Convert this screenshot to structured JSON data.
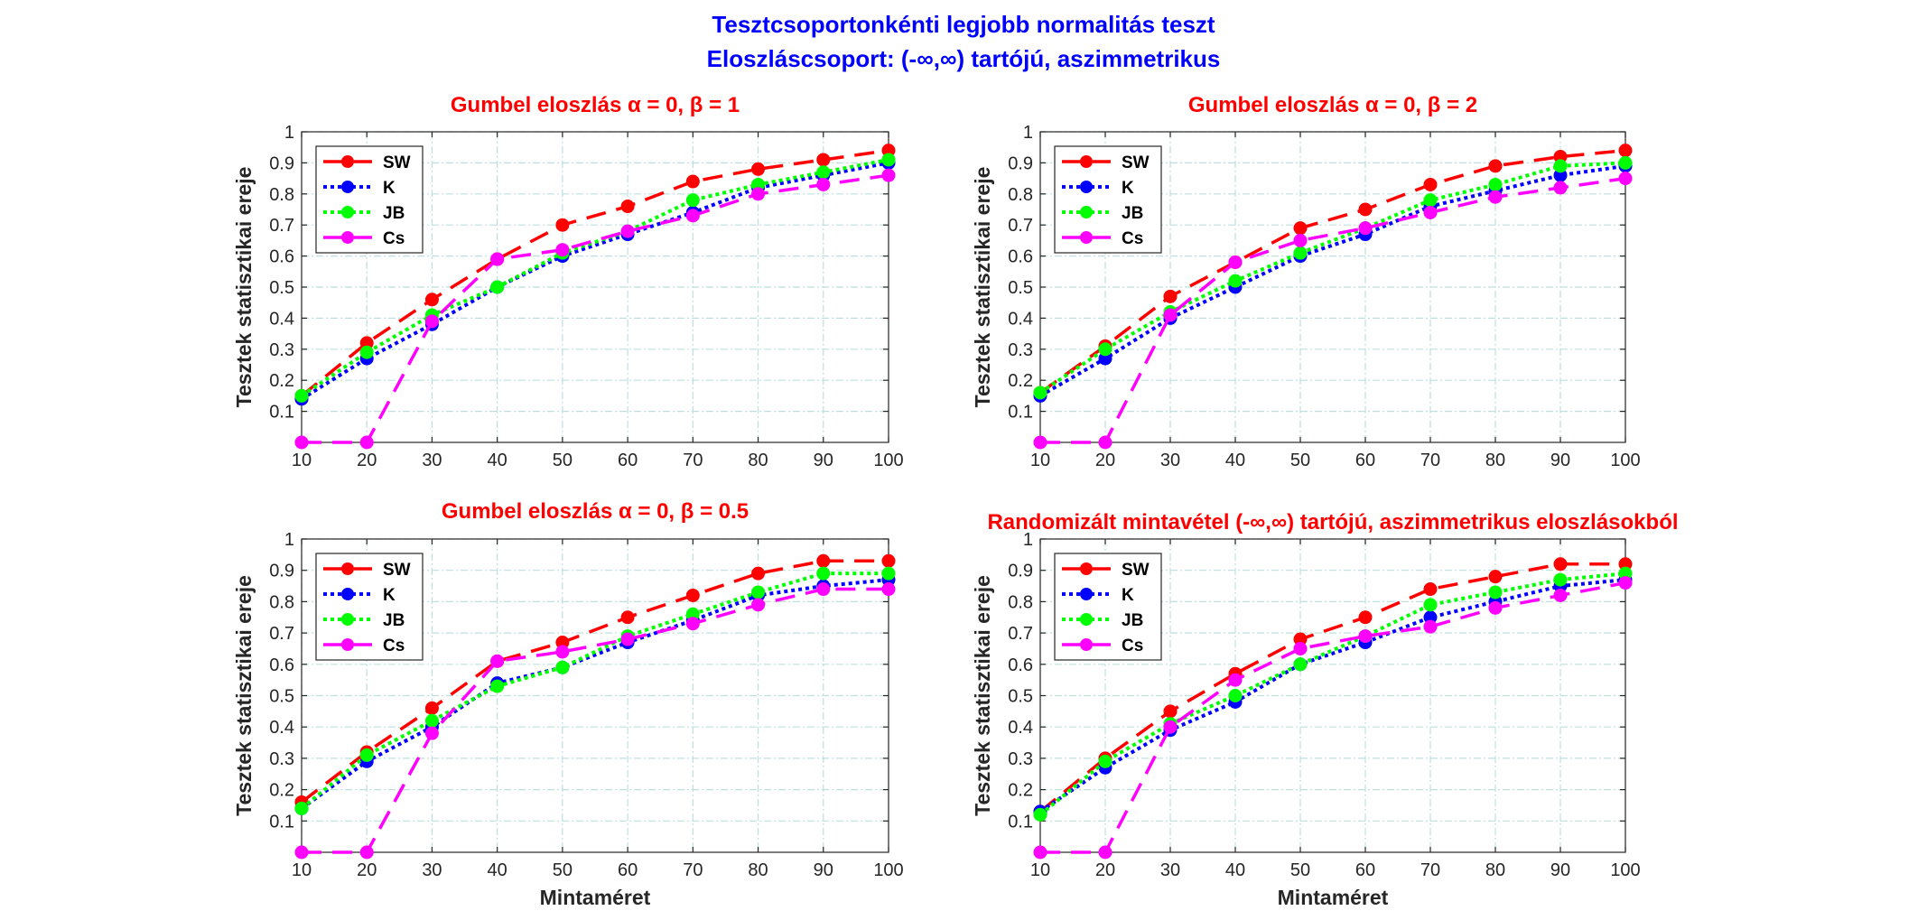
{
  "figure": {
    "title_line1": "Tesztcsoportonkénti legjobb normalitás teszt",
    "title_line2": "Eloszláscsoport: (-∞,∞) tartójú, aszimmetrikus",
    "title_color": "#0000ff",
    "subplot_title_color": "#ff0000"
  },
  "chart_data": [
    {
      "type": "line",
      "title": "Gumbel eloszlás α = 0, β = 1",
      "xlabel": "",
      "ylabel": "Tesztek statisztikai ereje",
      "x": [
        10,
        20,
        30,
        40,
        50,
        60,
        70,
        80,
        90,
        100
      ],
      "xlim": [
        10,
        100
      ],
      "ylim": [
        0,
        1
      ],
      "xticks": [
        "10",
        "20",
        "30",
        "40",
        "50",
        "60",
        "70",
        "80",
        "90",
        "100"
      ],
      "yticks": [
        "0.1",
        "0.2",
        "0.3",
        "0.4",
        "0.5",
        "0.6",
        "0.7",
        "0.8",
        "0.9",
        "1"
      ],
      "grid": true,
      "legend_position": "top-left",
      "series": [
        {
          "name": "SW",
          "color": "#ff0000",
          "style": "dashed",
          "values": [
            0.15,
            0.32,
            0.46,
            0.59,
            0.7,
            0.76,
            0.84,
            0.88,
            0.91,
            0.94
          ]
        },
        {
          "name": "K",
          "color": "#0000ff",
          "style": "dotted",
          "values": [
            0.14,
            0.27,
            0.38,
            0.5,
            0.6,
            0.67,
            0.74,
            0.82,
            0.86,
            0.9
          ]
        },
        {
          "name": "JB",
          "color": "#00ff00",
          "style": "dotted",
          "values": [
            0.15,
            0.29,
            0.41,
            0.5,
            0.61,
            0.68,
            0.78,
            0.83,
            0.87,
            0.91
          ]
        },
        {
          "name": "Cs",
          "color": "#ff00ff",
          "style": "dashed",
          "values": [
            0.0,
            0.0,
            0.39,
            0.59,
            0.62,
            0.68,
            0.73,
            0.8,
            0.83,
            0.86
          ]
        }
      ]
    },
    {
      "type": "line",
      "title": "Gumbel eloszlás α = 0, β = 2",
      "xlabel": "",
      "ylabel": "Tesztek statisztikai ereje",
      "x": [
        10,
        20,
        30,
        40,
        50,
        60,
        70,
        80,
        90,
        100
      ],
      "xlim": [
        10,
        100
      ],
      "ylim": [
        0,
        1
      ],
      "xticks": [
        "10",
        "20",
        "30",
        "40",
        "50",
        "60",
        "70",
        "80",
        "90",
        "100"
      ],
      "yticks": [
        "0.1",
        "0.2",
        "0.3",
        "0.4",
        "0.5",
        "0.6",
        "0.7",
        "0.8",
        "0.9",
        "1"
      ],
      "grid": true,
      "legend_position": "top-left",
      "series": [
        {
          "name": "SW",
          "color": "#ff0000",
          "style": "dashed",
          "values": [
            0.16,
            0.31,
            0.47,
            0.58,
            0.69,
            0.75,
            0.83,
            0.89,
            0.92,
            0.94
          ]
        },
        {
          "name": "K",
          "color": "#0000ff",
          "style": "dotted",
          "values": [
            0.15,
            0.27,
            0.4,
            0.5,
            0.6,
            0.67,
            0.76,
            0.81,
            0.86,
            0.89
          ]
        },
        {
          "name": "JB",
          "color": "#00ff00",
          "style": "dotted",
          "values": [
            0.16,
            0.3,
            0.42,
            0.52,
            0.61,
            0.69,
            0.78,
            0.83,
            0.89,
            0.9
          ]
        },
        {
          "name": "Cs",
          "color": "#ff00ff",
          "style": "dashed",
          "values": [
            0.0,
            0.0,
            0.41,
            0.58,
            0.65,
            0.69,
            0.74,
            0.79,
            0.82,
            0.85
          ]
        }
      ]
    },
    {
      "type": "line",
      "title": "Gumbel eloszlás α = 0, β = 0.5",
      "xlabel": "Mintaméret",
      "ylabel": "Tesztek statisztikai ereje",
      "x": [
        10,
        20,
        30,
        40,
        50,
        60,
        70,
        80,
        90,
        100
      ],
      "xlim": [
        10,
        100
      ],
      "ylim": [
        0,
        1
      ],
      "xticks": [
        "10",
        "20",
        "30",
        "40",
        "50",
        "60",
        "70",
        "80",
        "90",
        "100"
      ],
      "yticks": [
        "0.1",
        "0.2",
        "0.3",
        "0.4",
        "0.5",
        "0.6",
        "0.7",
        "0.8",
        "0.9",
        "1"
      ],
      "grid": true,
      "legend_position": "top-left",
      "series": [
        {
          "name": "SW",
          "color": "#ff0000",
          "style": "dashed",
          "values": [
            0.16,
            0.32,
            0.46,
            0.61,
            0.67,
            0.75,
            0.82,
            0.89,
            0.93,
            0.93
          ]
        },
        {
          "name": "K",
          "color": "#0000ff",
          "style": "dotted",
          "values": [
            0.14,
            0.29,
            0.4,
            0.54,
            0.59,
            0.67,
            0.74,
            0.82,
            0.85,
            0.87
          ]
        },
        {
          "name": "JB",
          "color": "#00ff00",
          "style": "dotted",
          "values": [
            0.14,
            0.31,
            0.42,
            0.53,
            0.59,
            0.69,
            0.76,
            0.83,
            0.89,
            0.89
          ]
        },
        {
          "name": "Cs",
          "color": "#ff00ff",
          "style": "dashed",
          "values": [
            0.0,
            0.0,
            0.38,
            0.61,
            0.64,
            0.68,
            0.73,
            0.79,
            0.84,
            0.84
          ]
        }
      ]
    },
    {
      "type": "line",
      "title": "Randomizált mintavétel (-∞,∞) tartójú, aszimmetrikus eloszlásokból",
      "xlabel": "Mintaméret",
      "ylabel": "Tesztek statisztikai ereje",
      "x": [
        10,
        20,
        30,
        40,
        50,
        60,
        70,
        80,
        90,
        100
      ],
      "xlim": [
        10,
        100
      ],
      "ylim": [
        0,
        1
      ],
      "xticks": [
        "10",
        "20",
        "30",
        "40",
        "50",
        "60",
        "70",
        "80",
        "90",
        "100"
      ],
      "yticks": [
        "0.1",
        "0.2",
        "0.3",
        "0.4",
        "0.5",
        "0.6",
        "0.7",
        "0.8",
        "0.9",
        "1"
      ],
      "grid": true,
      "legend_position": "top-left",
      "series": [
        {
          "name": "SW",
          "color": "#ff0000",
          "style": "dashed",
          "values": [
            0.13,
            0.3,
            0.45,
            0.57,
            0.68,
            0.75,
            0.84,
            0.88,
            0.92,
            0.92
          ]
        },
        {
          "name": "K",
          "color": "#0000ff",
          "style": "dotted",
          "values": [
            0.13,
            0.27,
            0.39,
            0.48,
            0.6,
            0.67,
            0.75,
            0.8,
            0.85,
            0.87
          ]
        },
        {
          "name": "JB",
          "color": "#00ff00",
          "style": "dotted",
          "values": [
            0.12,
            0.29,
            0.41,
            0.5,
            0.6,
            0.69,
            0.79,
            0.83,
            0.87,
            0.89
          ]
        },
        {
          "name": "Cs",
          "color": "#ff00ff",
          "style": "dashed",
          "values": [
            0.0,
            0.0,
            0.4,
            0.55,
            0.65,
            0.69,
            0.72,
            0.78,
            0.82,
            0.86
          ]
        }
      ]
    }
  ]
}
